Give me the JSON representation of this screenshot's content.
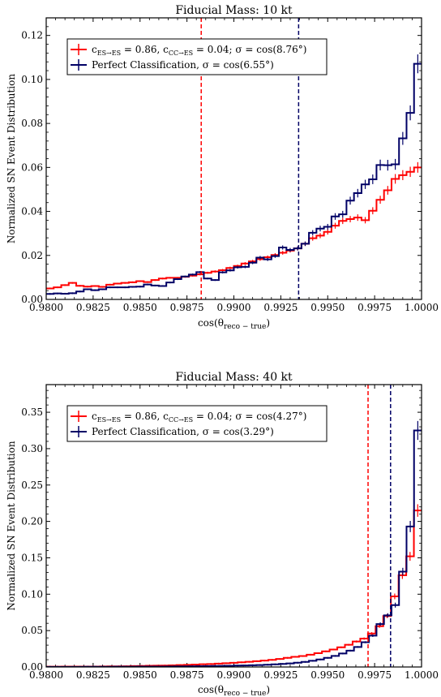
{
  "chart_data": [
    {
      "type": "line",
      "title": "Fiducial Mass: 10 kt",
      "xlabel": "cos(θ",
      "xlabel_sub": "reco − true",
      "xlabel_end": ")",
      "ylabel": "Normalized SN Event Distribution",
      "xlim": [
        0.98,
        1.0
      ],
      "ylim": [
        0,
        0.128
      ],
      "xticks": [
        "0.9800",
        "0.9825",
        "0.9850",
        "0.9875",
        "0.9900",
        "0.9925",
        "0.9950",
        "0.9975",
        "1.0000"
      ],
      "yticks": [
        "0.00",
        "0.02",
        "0.04",
        "0.06",
        "0.08",
        "0.10",
        "0.12"
      ],
      "legend_position": "upper-left",
      "legend": [
        {
          "text": "c",
          "sub1": "ES→ES",
          "mid": " = 0.86, c",
          "sub2": "CC→ES",
          "end": " = 0.04; σ = cos(8.76°)"
        },
        {
          "text": "Perfect Classification, σ = cos(6.55°)"
        }
      ],
      "vlines": [
        {
          "x": 0.98826,
          "color": "#ff0000"
        },
        {
          "x": 0.99345,
          "color": "#000066"
        }
      ],
      "series": [
        {
          "color": "#ff0000",
          "values": [
            0.005,
            0.0055,
            0.0065,
            0.0075,
            0.0062,
            0.0058,
            0.0061,
            0.0057,
            0.0067,
            0.0072,
            0.0075,
            0.0078,
            0.0083,
            0.0079,
            0.0088,
            0.0095,
            0.0098,
            0.0098,
            0.0103,
            0.0108,
            0.0114,
            0.0121,
            0.0127,
            0.0133,
            0.0143,
            0.0152,
            0.0163,
            0.0173,
            0.0183,
            0.0192,
            0.0202,
            0.0212,
            0.0222,
            0.0232,
            0.0253,
            0.0278,
            0.029,
            0.0307,
            0.0335,
            0.0357,
            0.0365,
            0.0372,
            0.036,
            0.0403,
            0.0453,
            0.0496,
            0.0548,
            0.0565,
            0.058,
            0.06
          ]
        },
        {
          "color": "#000066",
          "values": [
            0.0025,
            0.0027,
            0.0026,
            0.0028,
            0.0036,
            0.0046,
            0.0042,
            0.0046,
            0.0055,
            0.0055,
            0.0055,
            0.0057,
            0.0058,
            0.0068,
            0.0063,
            0.0061,
            0.0077,
            0.0092,
            0.0104,
            0.0113,
            0.0124,
            0.0095,
            0.0088,
            0.0123,
            0.0132,
            0.0146,
            0.0148,
            0.0167,
            0.019,
            0.0182,
            0.0197,
            0.0236,
            0.0225,
            0.0232,
            0.0253,
            0.0303,
            0.0322,
            0.033,
            0.0377,
            0.0387,
            0.0449,
            0.0483,
            0.0523,
            0.0546,
            0.0611,
            0.061,
            0.0614,
            0.0732,
            0.0848,
            0.1071
          ]
        }
      ]
    },
    {
      "type": "line",
      "title": "Fiducial Mass: 40 kt",
      "xlabel": "cos(θ",
      "xlabel_sub": "reco − true",
      "xlabel_end": ")",
      "ylabel": "Normalized SN Event Distribution",
      "xlim": [
        0.98,
        1.0
      ],
      "ylim": [
        0,
        0.388
      ],
      "xticks": [
        "0.9800",
        "0.9825",
        "0.9850",
        "0.9875",
        "0.9900",
        "0.9925",
        "0.9950",
        "0.9975",
        "1.0000"
      ],
      "yticks": [
        "0.00",
        "0.05",
        "0.10",
        "0.15",
        "0.20",
        "0.25",
        "0.30",
        "0.35"
      ],
      "legend_position": "upper-left",
      "legend": [
        {
          "text": "c",
          "sub1": "ES→ES",
          "mid": " = 0.86, c",
          "sub2": "CC→ES",
          "end": " = 0.04; σ = cos(4.27°)"
        },
        {
          "text": "Perfect Classification, σ = cos(3.29°)"
        }
      ],
      "vlines": [
        {
          "x": 0.99715,
          "color": "#ff0000"
        },
        {
          "x": 0.99835,
          "color": "#000066"
        }
      ],
      "series": [
        {
          "color": "#ff0000",
          "values": [
            0.0004,
            0.0004,
            0.0005,
            0.0005,
            0.0005,
            0.0006,
            0.0006,
            0.0007,
            0.0008,
            0.0009,
            0.001,
            0.0012,
            0.0014,
            0.0016,
            0.0018,
            0.002,
            0.0023,
            0.0026,
            0.0029,
            0.0033,
            0.0037,
            0.0041,
            0.0046,
            0.0051,
            0.0057,
            0.0064,
            0.0071,
            0.0079,
            0.0088,
            0.0098,
            0.011,
            0.0125,
            0.014,
            0.015,
            0.0168,
            0.019,
            0.0215,
            0.024,
            0.027,
            0.0305,
            0.035,
            0.039,
            0.046,
            0.056,
            0.07,
            0.097,
            0.126,
            0.152,
            0.215
          ]
        },
        {
          "color": "#000066",
          "values": [
            0.0002,
            0.0002,
            0.0002,
            0.0002,
            0.0002,
            0.0003,
            0.0003,
            0.0003,
            0.0003,
            0.0004,
            0.0004,
            0.0004,
            0.0005,
            0.0005,
            0.0006,
            0.0006,
            0.0007,
            0.0008,
            0.0009,
            0.001,
            0.0011,
            0.0012,
            0.0014,
            0.0015,
            0.0017,
            0.0019,
            0.0021,
            0.0024,
            0.0027,
            0.0031,
            0.0036,
            0.0042,
            0.0049,
            0.0058,
            0.007,
            0.0085,
            0.0103,
            0.0125,
            0.0152,
            0.0185,
            0.0225,
            0.0275,
            0.034,
            0.043,
            0.059,
            0.071,
            0.085,
            0.131,
            0.193,
            0.325
          ]
        }
      ]
    }
  ]
}
